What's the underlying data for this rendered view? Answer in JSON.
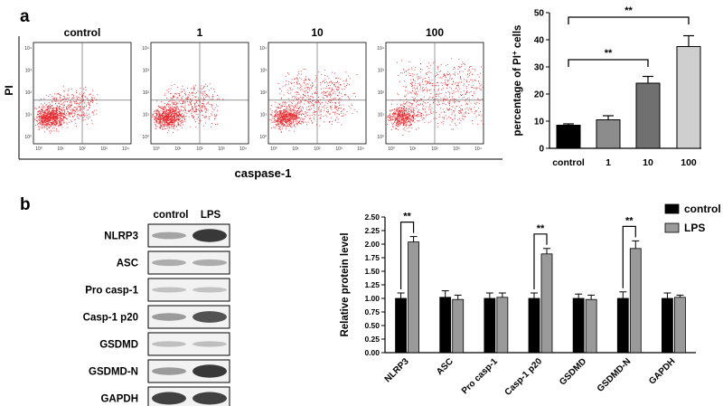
{
  "panels": {
    "a": {
      "letter": "a"
    },
    "b": {
      "letter": "b"
    }
  },
  "flow": {
    "y_label": "PI",
    "x_label": "caspase-1",
    "dot_color": "#e8252a",
    "plots": [
      {
        "label": "control",
        "spread": 0.2
      },
      {
        "label": "1",
        "spread": 0.3
      },
      {
        "label": "10",
        "spread": 0.6
      },
      {
        "label": "100",
        "spread": 0.9
      }
    ],
    "y_ticks": [
      "10⁴",
      "10³",
      "10²",
      "10¹",
      "10⁰"
    ],
    "x_ticks": [
      "10⁰",
      "10¹",
      "10²",
      "10³",
      "10⁴"
    ]
  },
  "blot": {
    "columns": [
      "control",
      "LPS"
    ],
    "rows": [
      {
        "label": "NLRP3",
        "control": 0.35,
        "lps": 0.95
      },
      {
        "label": "ASC",
        "control": 0.3,
        "lps": 0.3
      },
      {
        "label": "Pro casp-1",
        "control": 0.18,
        "lps": 0.18
      },
      {
        "label": "Casp-1 p20",
        "control": 0.4,
        "lps": 0.8
      },
      {
        "label": "GSDMD",
        "control": 0.2,
        "lps": 0.2
      },
      {
        "label": "GSDMD-N",
        "control": 0.4,
        "lps": 0.95
      },
      {
        "label": "GAPDH",
        "control": 0.9,
        "lps": 0.9
      }
    ]
  },
  "chart_data": [
    {
      "type": "bar",
      "title": "",
      "xlabel": "",
      "ylabel_main": "percentage of PI",
      "ylabel_sup": "+",
      "ylabel_tail": " cells",
      "categories": [
        "control",
        "1",
        "10",
        "100"
      ],
      "values": [
        8.5,
        10.5,
        24,
        37.5
      ],
      "errors": [
        0.5,
        1.5,
        2.5,
        4
      ],
      "colors": [
        "#000000",
        "#8c8c8c",
        "#707070",
        "#cfcfcf"
      ],
      "ylim": [
        0,
        50
      ],
      "yticks": [
        0,
        10,
        20,
        30,
        40,
        50
      ],
      "significance": [
        {
          "from": 0,
          "to": 2,
          "label": "**"
        },
        {
          "from": 0,
          "to": 3,
          "label": "**"
        }
      ]
    },
    {
      "type": "bar",
      "title": "",
      "xlabel": "",
      "ylabel": "Relative protein level",
      "categories": [
        "NLRP3",
        "ASC",
        "Pro casp-1",
        "Casp-1 p20",
        "GSDMD",
        "GSDMD-N",
        "GAPDH"
      ],
      "series": [
        {
          "name": "control",
          "color": "#000000",
          "values": [
            1.0,
            1.02,
            1.0,
            1.0,
            1.0,
            1.0,
            1.0
          ],
          "errors": [
            0.1,
            0.12,
            0.1,
            0.1,
            0.08,
            0.12,
            0.1
          ]
        },
        {
          "name": "LPS",
          "color": "#9a9a9a",
          "values": [
            2.04,
            0.98,
            1.02,
            1.82,
            0.98,
            1.92,
            1.02
          ],
          "errors": [
            0.1,
            0.08,
            0.08,
            0.1,
            0.08,
            0.14,
            0.04
          ]
        }
      ],
      "ylim": [
        0,
        2.5
      ],
      "yticks": [
        "0.00",
        "0.25",
        "0.50",
        "0.75",
        "1.00",
        "1.25",
        "1.50",
        "1.75",
        "2.00",
        "2.25",
        "2.50"
      ],
      "legend": "top-right",
      "significance": [
        {
          "category": 0,
          "label": "**"
        },
        {
          "category": 3,
          "label": "**"
        },
        {
          "category": 5,
          "label": "**"
        }
      ]
    }
  ]
}
